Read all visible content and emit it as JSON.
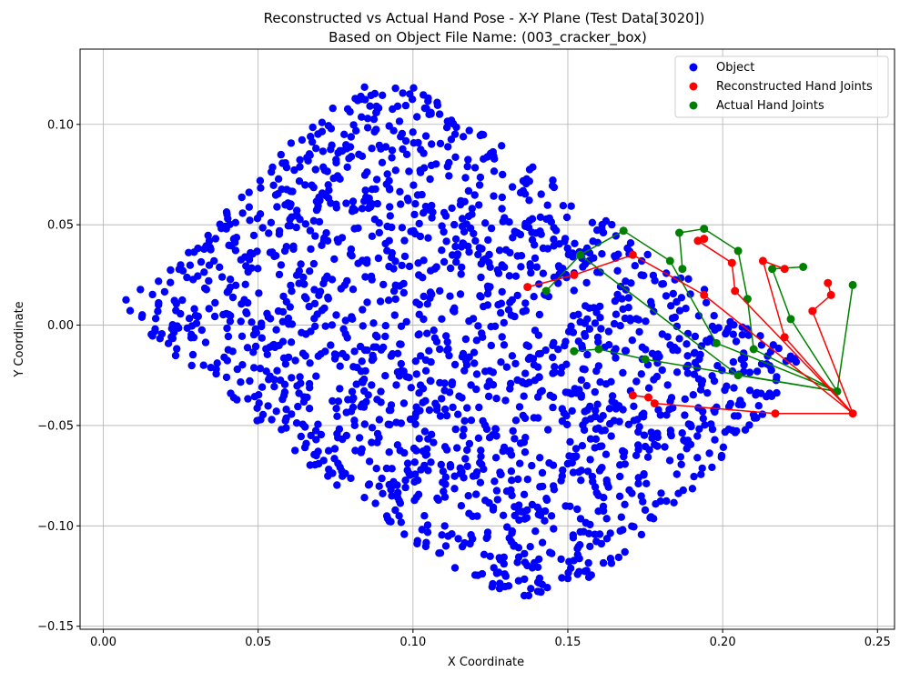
{
  "chart_data": {
    "type": "scatter",
    "title": "Reconstructed vs Actual Hand Pose - X-Y Plane (Test Data[3020])",
    "subtitle": "Based on Object File Name: (003_cracker_box)",
    "xlabel": "X Coordinate",
    "ylabel": "Y Coordinate",
    "xlim": [
      -0.0075,
      0.2555
    ],
    "ylim": [
      -0.1515,
      0.1375
    ],
    "xticks": [
      0.0,
      0.05,
      0.1,
      0.15,
      0.2,
      0.25
    ],
    "xtick_labels": [
      "0.00",
      "0.05",
      "0.10",
      "0.15",
      "0.20",
      "0.25"
    ],
    "yticks": [
      -0.15,
      -0.1,
      -0.05,
      0.0,
      0.05,
      0.1
    ],
    "ytick_labels": [
      "−0.15",
      "−0.10",
      "−0.05",
      "0.00",
      "0.05",
      "0.10"
    ],
    "grid": true,
    "legend_position": "top-right",
    "legend": [
      {
        "label": "Object",
        "color": "#0000ff"
      },
      {
        "label": "Reconstructed Hand Joints",
        "color": "#ff0000"
      },
      {
        "label": "Actual Hand Joints",
        "color": "#008000"
      }
    ],
    "object_outline": [
      [
        0.005,
        0.01
      ],
      [
        0.03,
        0.04
      ],
      [
        0.06,
        0.09
      ],
      [
        0.075,
        0.11
      ],
      [
        0.088,
        0.122
      ],
      [
        0.103,
        0.118
      ],
      [
        0.12,
        0.1
      ],
      [
        0.14,
        0.078
      ],
      [
        0.155,
        0.062
      ],
      [
        0.175,
        0.04
      ],
      [
        0.2,
        0.012
      ],
      [
        0.225,
        -0.018
      ],
      [
        0.215,
        -0.042
      ],
      [
        0.195,
        -0.075
      ],
      [
        0.175,
        -0.105
      ],
      [
        0.16,
        -0.125
      ],
      [
        0.135,
        -0.137
      ],
      [
        0.118,
        -0.125
      ],
      [
        0.095,
        -0.105
      ],
      [
        0.075,
        -0.08
      ],
      [
        0.055,
        -0.055
      ],
      [
        0.035,
        -0.03
      ],
      [
        0.015,
        -0.005
      ]
    ],
    "series": [
      {
        "name": "Object",
        "color": "#0000ff",
        "point_count": 1800
      },
      {
        "name": "Reconstructed Hand Joints",
        "color": "#ff0000",
        "points": [
          [
            0.242,
            -0.044
          ],
          [
            0.178,
            -0.039
          ],
          [
            0.176,
            -0.036
          ],
          [
            0.171,
            -0.035
          ],
          [
            0.242,
            -0.044
          ],
          [
            0.217,
            -0.044
          ],
          [
            0.204,
            -0.036
          ],
          [
            0.242,
            -0.044
          ],
          [
            0.172,
            0.035
          ],
          [
            0.153,
            0.025
          ],
          [
            0.137,
            0.019
          ],
          [
            0.242,
            -0.044
          ],
          [
            0.195,
            0.015
          ],
          [
            0.192,
            0.034
          ],
          [
            0.191,
            0.042
          ],
          [
            0.194,
            0.043
          ],
          [
            0.242,
            -0.044
          ],
          [
            0.213,
            0.032
          ],
          [
            0.203,
            0.031
          ],
          [
            0.242,
            -0.044
          ],
          [
            0.229,
            0.007
          ],
          [
            0.235,
            0.015
          ],
          [
            0.234,
            0.021
          ],
          [
            0.22,
            -0.006
          ],
          [
            0.22,
            0.028
          ],
          [
            0.204,
            0.017
          ]
        ],
        "chains": [
          [
            [
              0.242,
              -0.044
            ],
            [
              0.217,
              -0.044
            ],
            [
              0.178,
              -0.039
            ],
            [
              0.176,
              -0.036
            ],
            [
              0.171,
              -0.035
            ]
          ],
          [
            [
              0.242,
              -0.044
            ],
            [
              0.194,
              0.015
            ],
            [
              0.171,
              0.035
            ],
            [
              0.152,
              0.025
            ],
            [
              0.137,
              0.019
            ]
          ],
          [
            [
              0.242,
              -0.044
            ],
            [
              0.204,
              0.017
            ],
            [
              0.203,
              0.031
            ],
            [
              0.192,
              0.042
            ],
            [
              0.194,
              0.043
            ]
          ],
          [
            [
              0.242,
              -0.044
            ],
            [
              0.22,
              -0.006
            ],
            [
              0.213,
              0.032
            ],
            [
              0.22,
              0.028
            ]
          ],
          [
            [
              0.242,
              -0.044
            ],
            [
              0.229,
              0.007
            ],
            [
              0.235,
              0.015
            ],
            [
              0.234,
              0.021
            ]
          ]
        ]
      },
      {
        "name": "Actual Hand Joints",
        "color": "#008000",
        "chains": [
          [
            [
              0.237,
              -0.033
            ],
            [
              0.175,
              -0.017
            ],
            [
              0.16,
              -0.012
            ],
            [
              0.152,
              -0.013
            ]
          ],
          [
            [
              0.237,
              -0.033
            ],
            [
              0.205,
              -0.025
            ],
            [
              0.154,
              0.035
            ],
            [
              0.143,
              0.017
            ]
          ],
          [
            [
              0.237,
              -0.033
            ],
            [
              0.198,
              -0.009
            ],
            [
              0.183,
              0.032
            ],
            [
              0.168,
              0.047
            ],
            [
              0.154,
              0.035
            ]
          ],
          [
            [
              0.237,
              -0.033
            ],
            [
              0.21,
              -0.012
            ],
            [
              0.208,
              0.013
            ],
            [
              0.205,
              0.037
            ],
            [
              0.194,
              0.048
            ],
            [
              0.186,
              0.046
            ],
            [
              0.187,
              0.028
            ]
          ],
          [
            [
              0.237,
              -0.033
            ],
            [
              0.222,
              0.003
            ],
            [
              0.216,
              0.028
            ],
            [
              0.226,
              0.029
            ]
          ],
          [
            [
              0.237,
              -0.033
            ],
            [
              0.242,
              0.02
            ]
          ]
        ]
      }
    ]
  }
}
